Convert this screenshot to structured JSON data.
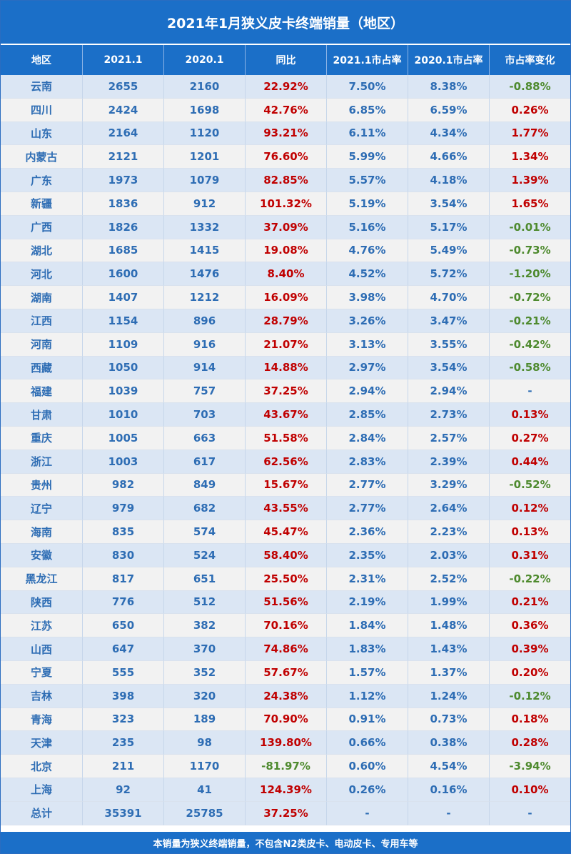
{
  "title": "2021年1月狭义皮卡终端销量（地区）",
  "headers": [
    "地区",
    "2021.1",
    "2020.1",
    "同比",
    "2021.1市占率",
    "2020.1市占率",
    "市占率变化"
  ],
  "rows": [
    [
      "云南",
      "2655",
      "2160",
      "22.92%",
      "7.50%",
      "8.38%",
      "-0.88%"
    ],
    [
      "四川",
      "2424",
      "1698",
      "42.76%",
      "6.85%",
      "6.59%",
      "0.26%"
    ],
    [
      "山东",
      "2164",
      "1120",
      "93.21%",
      "6.11%",
      "4.34%",
      "1.77%"
    ],
    [
      "内蒙古",
      "2121",
      "1201",
      "76.60%",
      "5.99%",
      "4.66%",
      "1.34%"
    ],
    [
      "广东",
      "1973",
      "1079",
      "82.85%",
      "5.57%",
      "4.18%",
      "1.39%"
    ],
    [
      "新疆",
      "1836",
      "912",
      "101.32%",
      "5.19%",
      "3.54%",
      "1.65%"
    ],
    [
      "广西",
      "1826",
      "1332",
      "37.09%",
      "5.16%",
      "5.17%",
      "-0.01%"
    ],
    [
      "湖北",
      "1685",
      "1415",
      "19.08%",
      "4.76%",
      "5.49%",
      "-0.73%"
    ],
    [
      "河北",
      "1600",
      "1476",
      "8.40%",
      "4.52%",
      "5.72%",
      "-1.20%"
    ],
    [
      "湖南",
      "1407",
      "1212",
      "16.09%",
      "3.98%",
      "4.70%",
      "-0.72%"
    ],
    [
      "江西",
      "1154",
      "896",
      "28.79%",
      "3.26%",
      "3.47%",
      "-0.21%"
    ],
    [
      "河南",
      "1109",
      "916",
      "21.07%",
      "3.13%",
      "3.55%",
      "-0.42%"
    ],
    [
      "西藏",
      "1050",
      "914",
      "14.88%",
      "2.97%",
      "3.54%",
      "-0.58%"
    ],
    [
      "福建",
      "1039",
      "757",
      "37.25%",
      "2.94%",
      "2.94%",
      "-"
    ],
    [
      "甘肃",
      "1010",
      "703",
      "43.67%",
      "2.85%",
      "2.73%",
      "0.13%"
    ],
    [
      "重庆",
      "1005",
      "663",
      "51.58%",
      "2.84%",
      "2.57%",
      "0.27%"
    ],
    [
      "浙江",
      "1003",
      "617",
      "62.56%",
      "2.83%",
      "2.39%",
      "0.44%"
    ],
    [
      "贵州",
      "982",
      "849",
      "15.67%",
      "2.77%",
      "3.29%",
      "-0.52%"
    ],
    [
      "辽宁",
      "979",
      "682",
      "43.55%",
      "2.77%",
      "2.64%",
      "0.12%"
    ],
    [
      "海南",
      "835",
      "574",
      "45.47%",
      "2.36%",
      "2.23%",
      "0.13%"
    ],
    [
      "安徽",
      "830",
      "524",
      "58.40%",
      "2.35%",
      "2.03%",
      "0.31%"
    ],
    [
      "黑龙江",
      "817",
      "651",
      "25.50%",
      "2.31%",
      "2.52%",
      "-0.22%"
    ],
    [
      "陕西",
      "776",
      "512",
      "51.56%",
      "2.19%",
      "1.99%",
      "0.21%"
    ],
    [
      "江苏",
      "650",
      "382",
      "70.16%",
      "1.84%",
      "1.48%",
      "0.36%"
    ],
    [
      "山西",
      "647",
      "370",
      "74.86%",
      "1.83%",
      "1.43%",
      "0.39%"
    ],
    [
      "宁夏",
      "555",
      "352",
      "57.67%",
      "1.57%",
      "1.37%",
      "0.20%"
    ],
    [
      "吉林",
      "398",
      "320",
      "24.38%",
      "1.12%",
      "1.24%",
      "-0.12%"
    ],
    [
      "青海",
      "323",
      "189",
      "70.90%",
      "0.91%",
      "0.73%",
      "0.18%"
    ],
    [
      "天津",
      "235",
      "98",
      "139.80%",
      "0.66%",
      "0.38%",
      "0.28%"
    ],
    [
      "北京",
      "211",
      "1170",
      "-81.97%",
      "0.60%",
      "4.54%",
      "-3.94%"
    ],
    [
      "上海",
      "92",
      "41",
      "124.39%",
      "0.26%",
      "0.16%",
      "0.10%"
    ],
    [
      "总计",
      "35391",
      "25785",
      "37.25%",
      "-",
      "-",
      "-"
    ]
  ],
  "footer": "本销量为狭义终端销量，不包含N2类皮卡、电动皮卡、专用车等",
  "colors": {
    "header_bg": "#1b6fc8",
    "positive": "#c00000",
    "negative": "#4e8a2e",
    "value_text": "#2e6db4",
    "row_odd": "#dbe6f4",
    "row_even": "#f2f2f2"
  }
}
